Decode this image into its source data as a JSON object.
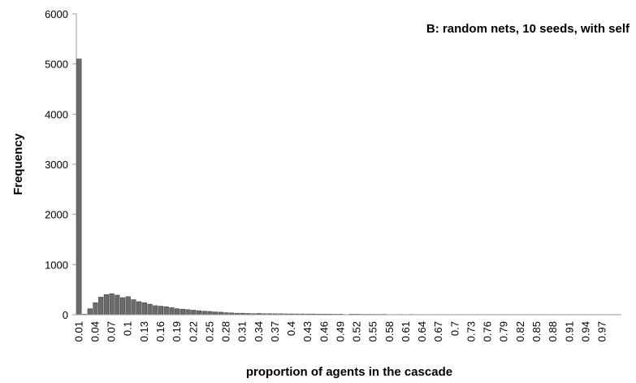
{
  "chart_data": {
    "type": "bar",
    "title": "B: random nets, 10 seeds, with self",
    "x_label": "proportion of agents in the cascade",
    "y_label": "Frequency",
    "categories": [
      "0.01",
      null,
      null,
      "0.04",
      null,
      null,
      "0.07",
      null,
      null,
      "0.1",
      null,
      null,
      "0.13",
      null,
      null,
      "0.16",
      null,
      null,
      "0.19",
      null,
      null,
      "0.22",
      null,
      null,
      "0.25",
      null,
      null,
      "0.28",
      null,
      null,
      "0.31",
      null,
      null,
      "0.34",
      null,
      null,
      "0.37",
      null,
      null,
      "0.4",
      null,
      null,
      "0.43",
      null,
      null,
      "0.46",
      null,
      null,
      "0.49",
      null,
      null,
      "0.52",
      null,
      null,
      "0.55",
      null,
      null,
      "0.58",
      null,
      null,
      "0.61",
      null,
      null,
      "0.64",
      null,
      null,
      "0.67",
      null,
      null,
      "0.7",
      null,
      null,
      "0.73",
      null,
      null,
      "0.76",
      null,
      null,
      "0.79",
      null,
      null,
      "0.82",
      null,
      null,
      "0.85",
      null,
      null,
      "0.88",
      null,
      null,
      "0.91",
      null,
      null,
      "0.94",
      null,
      null,
      "0.97",
      null,
      null,
      null
    ],
    "values": [
      5100,
      10,
      120,
      240,
      350,
      400,
      420,
      390,
      340,
      360,
      300,
      260,
      240,
      210,
      180,
      170,
      160,
      140,
      120,
      110,
      100,
      90,
      80,
      70,
      65,
      55,
      50,
      40,
      35,
      30,
      30,
      25,
      20,
      25,
      20,
      20,
      18,
      18,
      16,
      16,
      15,
      15,
      14,
      14,
      12,
      12,
      12,
      10,
      10,
      3,
      10,
      10,
      8,
      8,
      8,
      8,
      8,
      3,
      3,
      6,
      2,
      6,
      2,
      0,
      0,
      0,
      0,
      0,
      0,
      0,
      0,
      0,
      0,
      0,
      0,
      0,
      0,
      0,
      0,
      0,
      0,
      0,
      0,
      0,
      0,
      0,
      0,
      0,
      0,
      0,
      0,
      0,
      0,
      0,
      0,
      0,
      0,
      0,
      0,
      0
    ],
    "color": "#6b6b6b",
    "ylim": [
      0,
      6000
    ],
    "yticks": [
      0,
      1000,
      2000,
      3000,
      4000,
      5000,
      6000
    ]
  }
}
